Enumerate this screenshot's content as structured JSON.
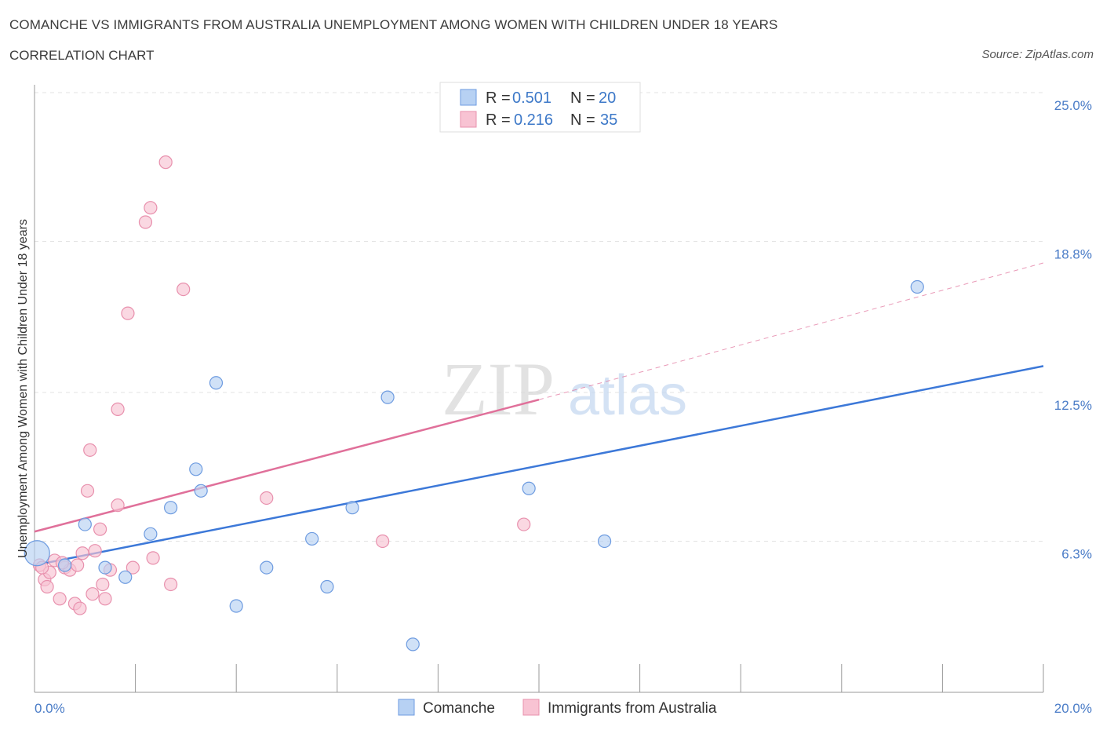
{
  "header": {
    "title": "COMANCHE VS IMMIGRANTS FROM AUSTRALIA UNEMPLOYMENT AMONG WOMEN WITH CHILDREN UNDER 18 YEARS",
    "subtitle": "CORRELATION CHART",
    "source": "Source: ZipAtlas.com"
  },
  "watermark": {
    "zip": "ZIP",
    "atlas": "atlas"
  },
  "legend": {
    "r_label": "R =",
    "n_label": "N =",
    "items": [
      {
        "r": "0.501",
        "n": "20",
        "color": "#b7d1f3"
      },
      {
        "r": "0.216",
        "n": "35",
        "color": "#f8c3d3"
      }
    ]
  },
  "bottom_legend": [
    {
      "label": "Comanche",
      "color": "#b7d1f3"
    },
    {
      "label": "Immigrants from Australia",
      "color": "#f8c3d3"
    }
  ],
  "chart_data": {
    "type": "scatter",
    "ylabel": "Unemployment Among Women with Children Under 18 years",
    "xlim": [
      0,
      20
    ],
    "ylim": [
      0,
      25
    ],
    "x_tick_labels": [
      "0.0%",
      "20.0%"
    ],
    "y_ticks": [
      6.3,
      12.5,
      18.8,
      25.0
    ],
    "y_tick_labels": [
      "6.3%",
      "12.5%",
      "18.8%",
      "25.0%"
    ],
    "colors": {
      "comanche": "#3c78d8",
      "australia": "#e0709a",
      "comanche_fill": "#b7d1f3",
      "australia_fill": "#f8c3d3"
    },
    "series": [
      {
        "name": "Comanche",
        "points": [
          [
            0.05,
            5.8
          ],
          [
            1.0,
            7.0
          ],
          [
            1.4,
            5.2
          ],
          [
            1.8,
            4.8
          ],
          [
            2.3,
            6.6
          ],
          [
            2.7,
            7.7
          ],
          [
            3.2,
            9.3
          ],
          [
            3.3,
            8.4
          ],
          [
            3.6,
            12.9
          ],
          [
            4.0,
            3.6
          ],
          [
            4.6,
            5.2
          ],
          [
            5.5,
            6.4
          ],
          [
            5.8,
            4.4
          ],
          [
            6.3,
            7.7
          ],
          [
            7.0,
            12.3
          ],
          [
            7.5,
            2.0
          ],
          [
            9.8,
            8.5
          ],
          [
            11.3,
            6.3
          ],
          [
            17.5,
            16.9
          ],
          [
            0.6,
            5.3
          ]
        ],
        "trend": [
          [
            0,
            5.3
          ],
          [
            20,
            13.6
          ]
        ]
      },
      {
        "name": "Immigrants from Australia",
        "points": [
          [
            0.1,
            5.3
          ],
          [
            0.2,
            4.7
          ],
          [
            0.25,
            4.4
          ],
          [
            0.3,
            5.0
          ],
          [
            0.4,
            5.5
          ],
          [
            0.5,
            3.9
          ],
          [
            0.6,
            5.2
          ],
          [
            0.7,
            5.1
          ],
          [
            0.8,
            3.7
          ],
          [
            0.85,
            5.3
          ],
          [
            0.9,
            3.5
          ],
          [
            0.95,
            5.8
          ],
          [
            1.05,
            8.4
          ],
          [
            1.1,
            10.1
          ],
          [
            1.15,
            4.1
          ],
          [
            1.2,
            5.9
          ],
          [
            1.3,
            6.8
          ],
          [
            1.35,
            4.5
          ],
          [
            1.4,
            3.9
          ],
          [
            1.5,
            5.1
          ],
          [
            1.65,
            7.8
          ],
          [
            1.65,
            11.8
          ],
          [
            1.85,
            15.8
          ],
          [
            1.95,
            5.2
          ],
          [
            2.2,
            19.6
          ],
          [
            2.3,
            20.2
          ],
          [
            2.35,
            5.6
          ],
          [
            2.6,
            22.1
          ],
          [
            2.7,
            4.5
          ],
          [
            2.95,
            16.8
          ],
          [
            4.6,
            8.1
          ],
          [
            6.9,
            6.3
          ],
          [
            9.7,
            7.0
          ],
          [
            0.15,
            5.2
          ],
          [
            0.55,
            5.4
          ]
        ],
        "trend": [
          [
            0,
            6.7
          ],
          [
            10,
            12.2
          ]
        ],
        "trend_extension": [
          [
            10,
            12.2
          ],
          [
            20,
            17.9
          ]
        ]
      }
    ]
  }
}
